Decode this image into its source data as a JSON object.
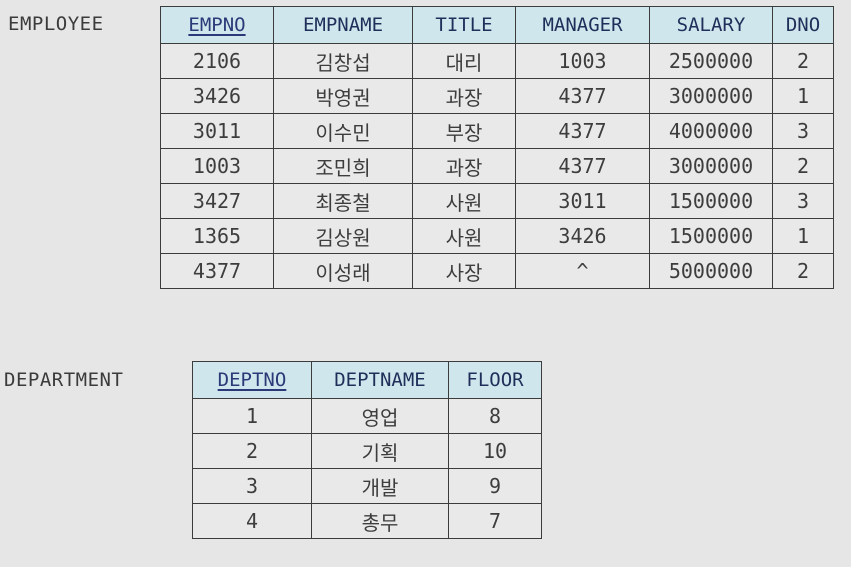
{
  "employee": {
    "label": "EMPLOYEE",
    "columns": [
      "EMPNO",
      "EMPNAME",
      "TITLE",
      "MANAGER",
      "SALARY",
      "DNO"
    ],
    "rows": [
      [
        "2106",
        "김창섭",
        "대리",
        "1003",
        "2500000",
        "2"
      ],
      [
        "3426",
        "박영권",
        "과장",
        "4377",
        "3000000",
        "1"
      ],
      [
        "3011",
        "이수민",
        "부장",
        "4377",
        "4000000",
        "3"
      ],
      [
        "1003",
        "조민희",
        "과장",
        "4377",
        "3000000",
        "2"
      ],
      [
        "3427",
        "최종철",
        "사원",
        "3011",
        "1500000",
        "3"
      ],
      [
        "1365",
        "김상원",
        "사원",
        "3426",
        "1500000",
        "1"
      ],
      [
        "4377",
        "이성래",
        "사장",
        "^",
        "5000000",
        "2"
      ]
    ],
    "primary_key": "EMPNO"
  },
  "department": {
    "label": "DEPARTMENT",
    "columns": [
      "DEPTNO",
      "DEPTNAME",
      "FLOOR"
    ],
    "rows": [
      [
        "1",
        "영업",
        "8"
      ],
      [
        "2",
        "기획",
        "10"
      ],
      [
        "3",
        "개발",
        "9"
      ],
      [
        "4",
        "총무",
        "7"
      ]
    ],
    "primary_key": "DEPTNO"
  },
  "colors": {
    "background": "#e6e6e6",
    "header_fill": "#cfe6ec",
    "header_text": "#1f2f5a",
    "border": "#3c3c3c"
  }
}
